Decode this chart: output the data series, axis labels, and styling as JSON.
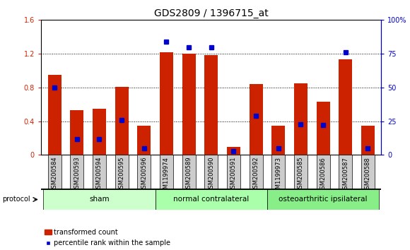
{
  "title": "GDS2809 / 1396715_at",
  "categories": [
    "GSM200584",
    "GSM200593",
    "GSM200594",
    "GSM200595",
    "GSM200596",
    "GSM1199974",
    "GSM200589",
    "GSM200590",
    "GSM200591",
    "GSM200592",
    "GSM1199973",
    "GSM200585",
    "GSM200586",
    "GSM200587",
    "GSM200588"
  ],
  "red_values": [
    0.95,
    0.53,
    0.55,
    0.81,
    0.35,
    1.22,
    1.2,
    1.18,
    0.1,
    0.84,
    0.35,
    0.85,
    0.63,
    1.13,
    0.35
  ],
  "blue_percent": [
    50,
    12,
    12,
    26,
    5,
    84,
    80,
    80,
    3,
    29,
    5,
    23,
    22,
    76,
    5
  ],
  "red_color": "#CC2200",
  "blue_color": "#0000CC",
  "ylim_left": [
    0,
    1.6
  ],
  "ylim_right": [
    0,
    100
  ],
  "yticks_left": [
    0,
    0.4,
    0.8,
    1.2,
    1.6
  ],
  "yticks_right": [
    0,
    25,
    50,
    75,
    100
  ],
  "ytick_labels_left": [
    "0",
    "0.4",
    "0.8",
    "1.2",
    "1.6"
  ],
  "ytick_labels_right": [
    "0",
    "25",
    "50",
    "75",
    "100%"
  ],
  "groups": [
    {
      "label": "sham",
      "start": 0,
      "end": 5,
      "color": "#ccffcc"
    },
    {
      "label": "normal contralateral",
      "start": 5,
      "end": 10,
      "color": "#aaffaa"
    },
    {
      "label": "osteoarthritic ipsilateral",
      "start": 10,
      "end": 15,
      "color": "#88ee88"
    }
  ],
  "protocol_label": "protocol",
  "legend_red": "transformed count",
  "legend_blue": "percentile rank within the sample",
  "bar_width": 0.6,
  "bg_color": "#ffffff",
  "plot_bg": "#ffffff",
  "grid_color": "#000000",
  "tick_label_color_left": "#CC2200",
  "tick_label_color_right": "#0000CC",
  "title_fontsize": 10,
  "axis_fontsize": 7,
  "xtick_bg": "#dddddd"
}
